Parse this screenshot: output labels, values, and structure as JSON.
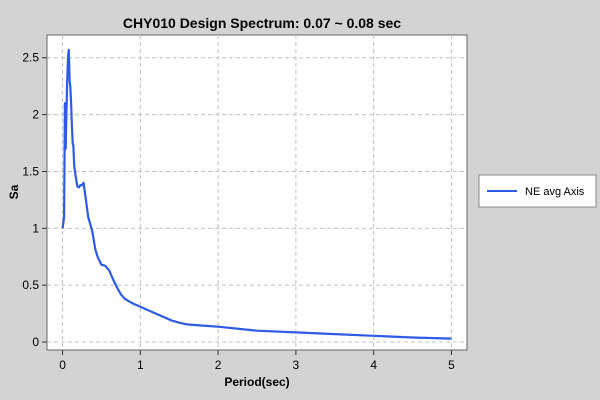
{
  "chart_data": {
    "type": "line",
    "title": "CHY010 Design Spectrum: 0.07 ~ 0.08 sec",
    "xlabel": "Period(sec)",
    "ylabel": "Sa",
    "xlim": [
      -0.2,
      5.2
    ],
    "ylim": [
      -0.07,
      2.7
    ],
    "xticks": [
      0,
      1,
      2,
      3,
      4,
      5
    ],
    "xtick_labels": [
      "0",
      "1",
      "2",
      "3",
      "4",
      "5"
    ],
    "yticks": [
      0,
      0.5,
      1,
      1.5,
      2,
      2.5
    ],
    "ytick_labels": [
      "0",
      "0.5",
      "1",
      "1.5",
      "2",
      "2.5"
    ],
    "grid": true,
    "legend": {
      "position": "right"
    },
    "colors": {
      "series": "#2e5be6",
      "plot_bg": "#ffffff",
      "page_bg": "#d3d3d3",
      "grid": "#c0c0c0"
    },
    "series": [
      {
        "name": "NE avg Axis",
        "x": [
          0.0,
          0.02,
          0.03,
          0.04,
          0.05,
          0.06,
          0.07,
          0.08,
          0.09,
          0.1,
          0.11,
          0.12,
          0.13,
          0.14,
          0.15,
          0.17,
          0.19,
          0.21,
          0.23,
          0.25,
          0.27,
          0.29,
          0.31,
          0.33,
          0.35,
          0.38,
          0.4,
          0.42,
          0.45,
          0.5,
          0.55,
          0.6,
          0.65,
          0.7,
          0.75,
          0.8,
          0.9,
          1.0,
          1.2,
          1.4,
          1.5,
          1.6,
          1.7,
          1.8,
          2.0,
          2.5,
          3.0,
          3.5,
          4.0,
          4.5,
          5.0
        ],
        "y": [
          1.0,
          1.1,
          2.1,
          1.7,
          2.0,
          2.3,
          2.5,
          2.57,
          2.3,
          2.25,
          2.1,
          1.9,
          1.75,
          1.72,
          1.55,
          1.45,
          1.37,
          1.36,
          1.38,
          1.38,
          1.4,
          1.3,
          1.2,
          1.1,
          1.05,
          0.98,
          0.9,
          0.82,
          0.75,
          0.68,
          0.67,
          0.63,
          0.55,
          0.48,
          0.42,
          0.38,
          0.34,
          0.31,
          0.25,
          0.19,
          0.17,
          0.155,
          0.15,
          0.145,
          0.135,
          0.1,
          0.085,
          0.07,
          0.055,
          0.04,
          0.03
        ]
      }
    ]
  }
}
